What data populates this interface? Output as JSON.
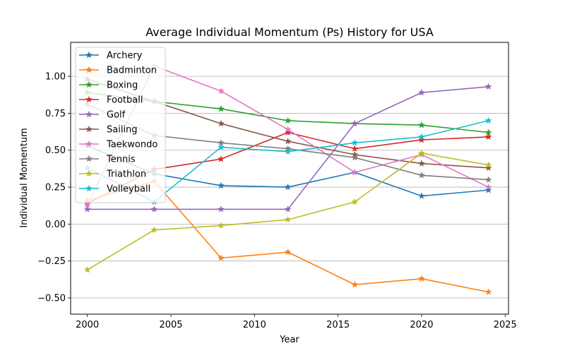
{
  "chart_data": {
    "type": "line",
    "title": "Average Individual Momentum (Ps) History for USA",
    "xlabel": "Year",
    "ylabel": "Individual Momentum",
    "x": [
      2000,
      2004,
      2008,
      2012,
      2016,
      2020,
      2024
    ],
    "xlim": [
      1999,
      2025.2
    ],
    "ylim": [
      -0.61,
      1.23
    ],
    "xticks": [
      2000,
      2005,
      2010,
      2015,
      2020,
      2025
    ],
    "yticks": [
      -0.5,
      -0.25,
      0.0,
      0.25,
      0.5,
      0.75,
      1.0
    ],
    "ytick_labels": [
      "−0.50",
      "−0.25",
      "0.00",
      "0.25",
      "0.50",
      "0.75",
      "1.00"
    ],
    "grid": "horizontal",
    "legend_position": "upper-left",
    "marker": "star",
    "series": [
      {
        "name": "Archery",
        "color": "#1f77b4",
        "values": [
          0.53,
          0.34,
          0.26,
          0.25,
          0.35,
          0.19,
          0.23
        ]
      },
      {
        "name": "Badminton",
        "color": "#ff7f0e",
        "values": [
          0.16,
          0.29,
          -0.23,
          -0.19,
          -0.41,
          -0.37,
          -0.46
        ]
      },
      {
        "name": "Boxing",
        "color": "#2ca02c",
        "values": [
          0.89,
          0.83,
          0.78,
          0.7,
          0.68,
          0.67,
          0.62
        ]
      },
      {
        "name": "Football",
        "color": "#d62728",
        "values": [
          0.14,
          0.37,
          0.44,
          0.62,
          0.51,
          0.57,
          0.59
        ]
      },
      {
        "name": "Golf",
        "color": "#9467bd",
        "values": [
          0.1,
          0.1,
          0.1,
          0.1,
          0.68,
          0.89,
          0.93
        ]
      },
      {
        "name": "Sailing",
        "color": "#8c564b",
        "values": [
          0.98,
          0.83,
          0.68,
          0.56,
          0.47,
          0.41,
          0.38
        ]
      },
      {
        "name": "Taekwondo",
        "color": "#e377c2",
        "values": [
          0.13,
          1.07,
          0.9,
          0.64,
          0.35,
          0.47,
          0.25
        ]
      },
      {
        "name": "Tennis",
        "color": "#7f7f7f",
        "values": [
          0.81,
          0.6,
          0.55,
          0.51,
          0.45,
          0.33,
          0.3
        ]
      },
      {
        "name": "Triathlon",
        "color": "#bcbd22",
        "values": [
          -0.31,
          -0.04,
          -0.01,
          0.03,
          0.15,
          0.48,
          0.4
        ]
      },
      {
        "name": "Volleyball",
        "color": "#17becf",
        "values": [
          0.38,
          0.15,
          0.52,
          0.49,
          0.55,
          0.59,
          0.7
        ]
      }
    ]
  }
}
